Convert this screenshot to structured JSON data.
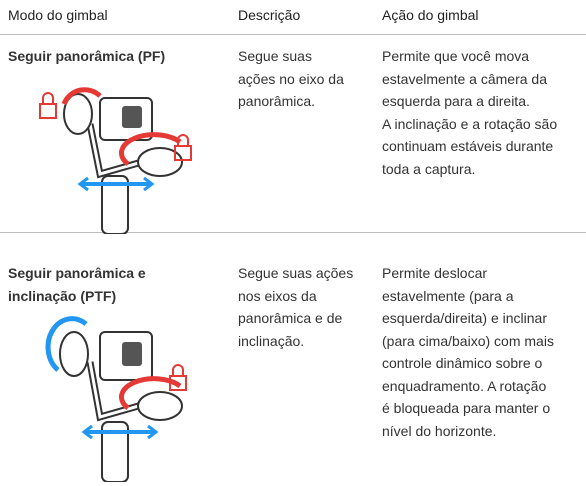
{
  "header": {
    "mode": "Modo do gimbal",
    "description": "Descrição",
    "action": "Ação do gimbal"
  },
  "rows": [
    {
      "mode": [
        "Seguir panorâmica (PF)"
      ],
      "description": [
        "Segue suas",
        "ações no eixo da",
        "panorâmica."
      ],
      "action": [
        "Permite que você mova",
        "estavelmente a câmera da",
        "esquerda para a direita.",
        "A inclinação e a rotação são",
        "continuam estáveis durante",
        "toda a captura."
      ]
    },
    {
      "mode": [
        "Seguir panorâmica e",
        "inclinação (PTF)"
      ],
      "description": [
        "Segue suas ações",
        "nos eixos da",
        "panorâmica e de",
        "inclinação."
      ],
      "action": [
        "Permite deslocar",
        "estavelmente (para a",
        "esquerda/direita) e inclinar",
        "(para cima/baixo) com mais",
        "controle dinâmico sobre o",
        "enquadramento. A rotação",
        "é bloqueada para manter o",
        "nível do horizonte."
      ]
    }
  ]
}
